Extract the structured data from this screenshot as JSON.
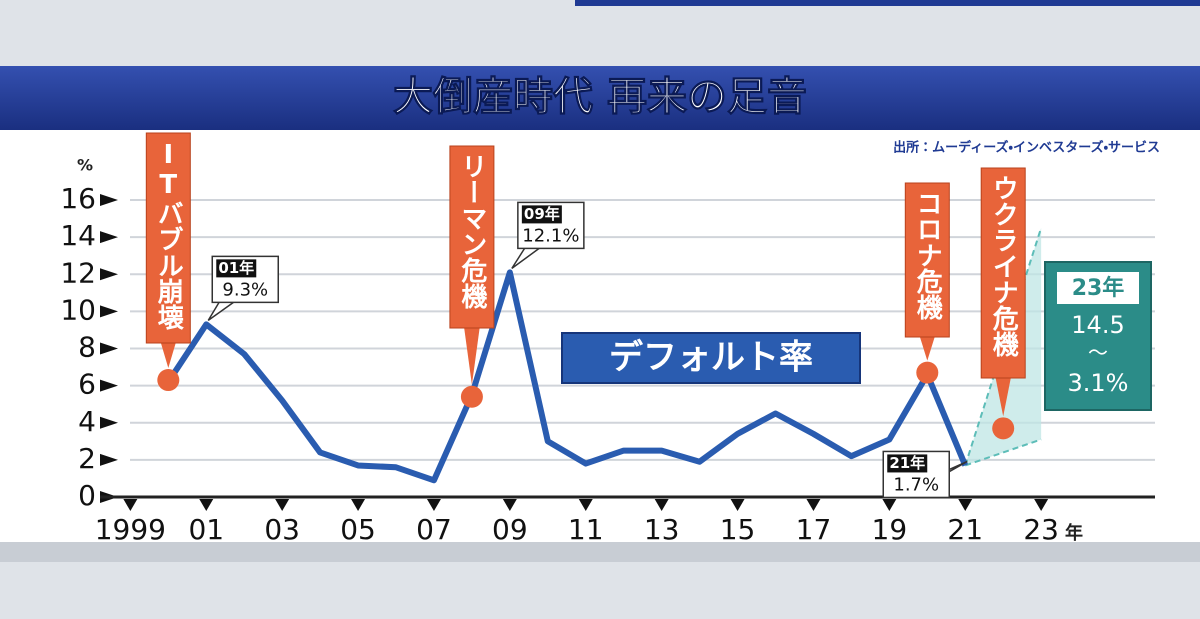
{
  "chart_data": {
    "type": "line",
    "title": "大倒産時代 再来の足音",
    "source": "出所：ムーディーズ・インベスターズ・サービス",
    "y_unit": "%",
    "x_unit": "年",
    "x": [
      2000,
      2001,
      2002,
      2003,
      2004,
      2005,
      2006,
      2007,
      2008,
      2009,
      2010,
      2011,
      2012,
      2013,
      2014,
      2015,
      2016,
      2017,
      2018,
      2019,
      2020,
      2021
    ],
    "series": [
      {
        "name": "デフォルト率",
        "color": "#2a5cb0",
        "values": [
          6.2,
          9.3,
          7.7,
          5.2,
          2.4,
          1.7,
          1.6,
          0.9,
          5.5,
          12.1,
          3.0,
          1.8,
          2.5,
          2.5,
          1.9,
          3.4,
          4.5,
          3.4,
          2.2,
          3.1,
          6.6,
          1.7
        ],
        "value_labels": [
          null,
          "9.3%",
          null,
          null,
          null,
          null,
          null,
          null,
          null,
          "12.1%",
          null,
          null,
          null,
          null,
          null,
          null,
          null,
          null,
          null,
          null,
          null,
          "1.7%"
        ]
      }
    ],
    "callouts": [
      {
        "x": 2001,
        "label": "01年"
      },
      {
        "x": 2009,
        "label": "09年"
      },
      {
        "x": 2021,
        "label": "21年"
      }
    ],
    "events": [
      {
        "label": "ITバブル崩壊",
        "x": 2000,
        "y": 6.3
      },
      {
        "label": "リーマン危機",
        "x": 2008,
        "y": 5.4
      },
      {
        "label": "コロナ危機",
        "x": 2020,
        "y": 6.7
      },
      {
        "label": "ウクライナ危機",
        "x": 2022,
        "y": 3.7
      }
    ],
    "forecast": {
      "label": "23年",
      "x": 2023,
      "high": 14.5,
      "low": 3.1,
      "high_label": "14.5",
      "separator": "〜",
      "low_label": "3.1%"
    },
    "xlim": [
      1998.2,
      2026
    ],
    "xticks": [
      {
        "value": 1999,
        "label": "1999"
      },
      {
        "value": 2001,
        "label": "01"
      },
      {
        "value": 2003,
        "label": "03"
      },
      {
        "value": 2005,
        "label": "05"
      },
      {
        "value": 2007,
        "label": "07"
      },
      {
        "value": 2009,
        "label": "09"
      },
      {
        "value": 2011,
        "label": "11"
      },
      {
        "value": 2013,
        "label": "13"
      },
      {
        "value": 2015,
        "label": "15"
      },
      {
        "value": 2017,
        "label": "17"
      },
      {
        "value": 2019,
        "label": "19"
      },
      {
        "value": 2021,
        "label": "21"
      },
      {
        "value": 2023,
        "label": "23"
      }
    ],
    "ylim": [
      0,
      16
    ],
    "yticks": [
      0,
      2,
      4,
      6,
      8,
      10,
      12,
      14,
      16
    ],
    "grid": true,
    "event_color": "#e8643a",
    "forecast_color": "#2b8c88"
  }
}
